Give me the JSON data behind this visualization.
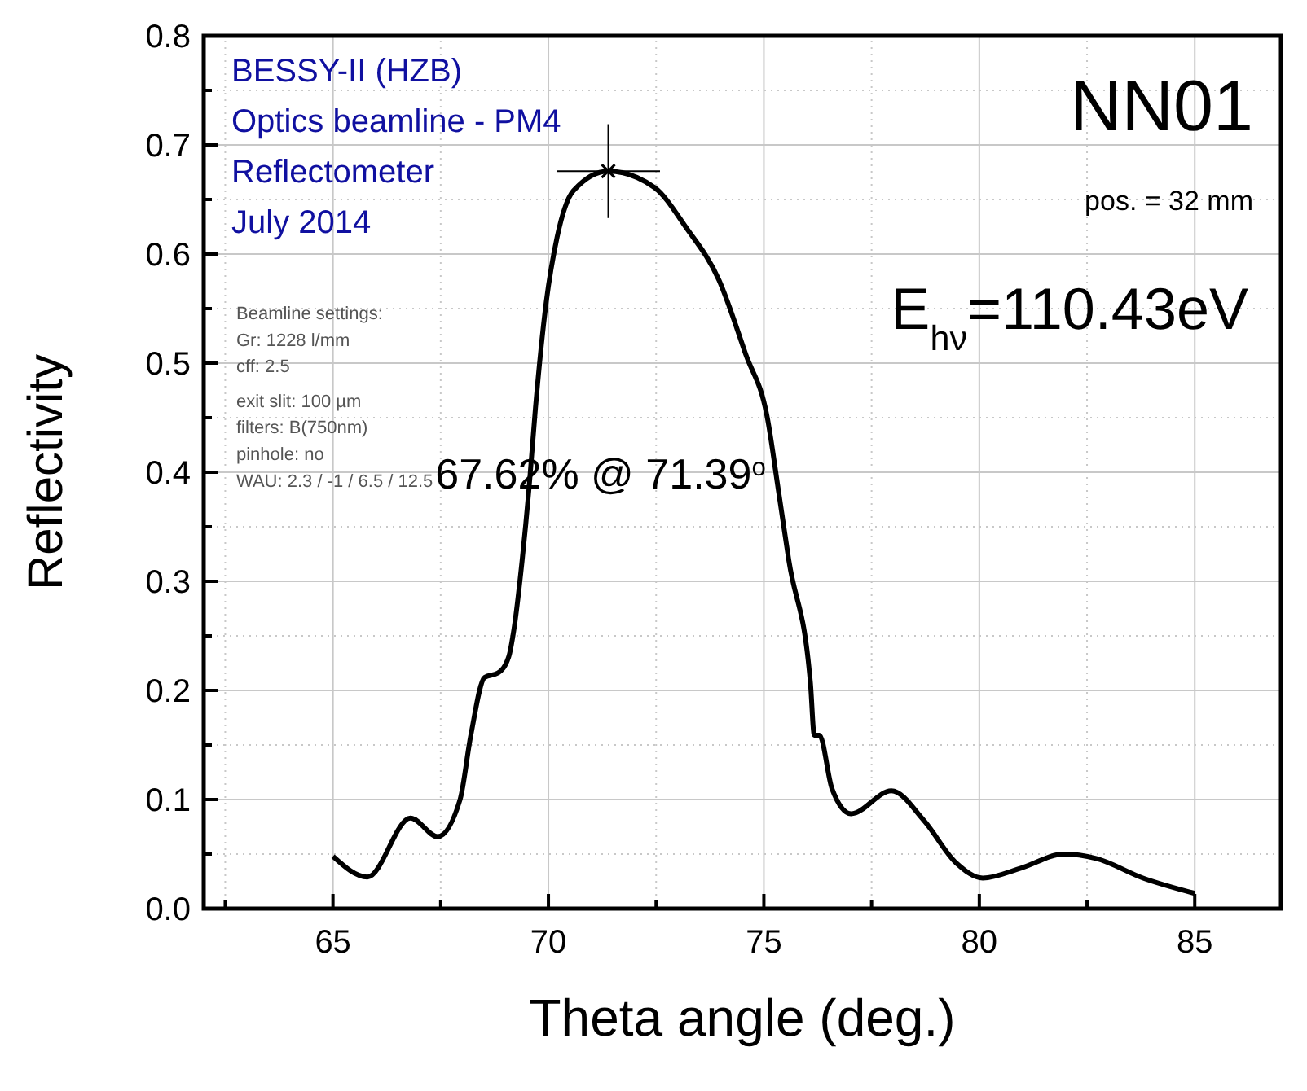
{
  "chart_data": {
    "type": "line",
    "title": "NN01",
    "xlabel": "Theta angle (deg.)",
    "ylabel": "Reflectivity",
    "annotations": [
      "BESSY-II (HZB)",
      "Optics beamline - PM4",
      "Reflectometer",
      "July 2014",
      "Beamline settings:",
      "Gr: 1228 l/mm",
      "cff: 2.5",
      "exit slit: 100 µm",
      "filters: B(750nm)",
      "pinhole: no",
      "WAU: 2.3 / -1 / 6.5 / 12.5",
      "pos. = 32 mm",
      "E$_{hν}$=110.43eV",
      "67.62% @ 71.39$^{o}$"
    ],
    "xlim": [
      62,
      87
    ],
    "ylim": [
      0,
      0.8
    ],
    "xticks": [
      {
        "value": 62.5,
        "label": null
      },
      65,
      {
        "value": 67.5,
        "label": null
      },
      70,
      {
        "value": 72.5,
        "label": null
      },
      75,
      {
        "value": 77.5,
        "label": null
      },
      80,
      {
        "value": 82.5,
        "label": null
      },
      85
    ],
    "yticks": [
      {
        "value": 0,
        "label": "0.0"
      },
      {
        "value": 0.05,
        "label": null
      },
      0.1,
      {
        "value": 0.15,
        "label": null
      },
      0.2,
      {
        "value": 0.25,
        "label": null
      },
      0.3,
      {
        "value": 0.35,
        "label": null
      },
      0.4,
      {
        "value": 0.45,
        "label": null
      },
      0.5,
      {
        "value": 0.55,
        "label": null
      },
      0.6,
      {
        "value": 0.65,
        "label": null
      },
      0.7,
      {
        "value": 0.75,
        "label": null
      },
      0.8
    ],
    "grid": true,
    "series": [
      {
        "color": "#000000",
        "marker": "none",
        "line_style": "solid",
        "x": [
          65,
          65.8,
          66.8,
          67.43,
          67.95,
          68.2,
          68.52,
          68.83,
          69.08,
          69.2,
          69.39,
          69.55,
          69.7,
          69.95,
          70.2,
          70.58,
          71.39,
          72.46,
          73.2,
          73.96,
          74.58,
          75.08,
          75.35,
          75.58,
          76.08,
          76.17,
          76.29,
          76.58,
          77.02,
          77.96,
          78.71,
          79.46,
          80.08,
          80.96,
          81.96,
          82.71,
          83.8,
          85
        ],
        "values": [
          0.048,
          0.029,
          0.083,
          0.066,
          0.1,
          0.159,
          0.212,
          0.216,
          0.231,
          0.256,
          0.319,
          0.385,
          0.459,
          0.556,
          0.615,
          0.658,
          0.676,
          0.661,
          0.624,
          0.576,
          0.508,
          0.45,
          0.38,
          0.319,
          0.207,
          0.159,
          0.159,
          0.11,
          0.087,
          0.108,
          0.081,
          0.042,
          0.028,
          0.037,
          0.05,
          0.046,
          0.028,
          0.014
        ]
      },
      {
        "type": "scatter",
        "color": "#000000",
        "marker": "cross",
        "x": [
          71.39
        ],
        "values": [
          0.676
        ],
        "errors": [
          0.043
        ],
        "xerrors": [
          1.2
        ]
      }
    ]
  }
}
